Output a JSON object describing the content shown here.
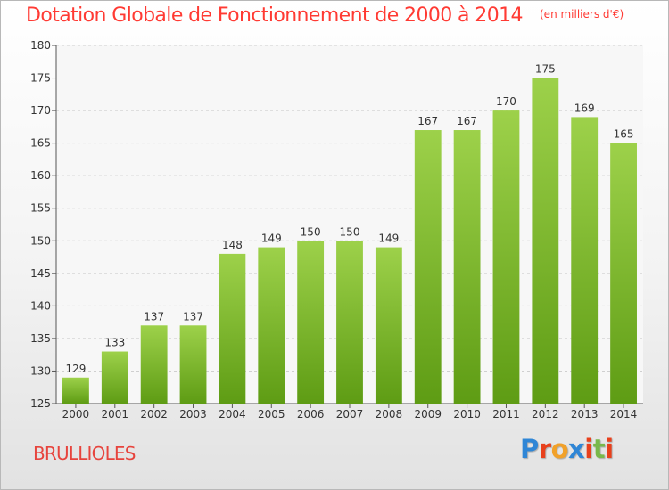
{
  "chart_data": {
    "type": "bar",
    "title": "Dotation Globale de Fonctionnement de 2000 à 2014",
    "subtitle": "(en milliers d'€)",
    "categories": [
      "2000",
      "2001",
      "2002",
      "2003",
      "2004",
      "2005",
      "2006",
      "2007",
      "2008",
      "2009",
      "2010",
      "2011",
      "2012",
      "2013",
      "2014"
    ],
    "values": [
      129,
      133,
      137,
      137,
      148,
      149,
      150,
      150,
      149,
      167,
      167,
      170,
      175,
      169,
      165
    ],
    "ylim": [
      125,
      180
    ],
    "yticks": [
      125,
      130,
      135,
      140,
      145,
      150,
      155,
      160,
      165,
      170,
      175,
      180
    ],
    "grid": true,
    "bar_color": "#7ab829",
    "xlabel": "",
    "ylabel": ""
  },
  "commune": "BRULLIOLES",
  "brand": [
    "P",
    "r",
    "o",
    "x",
    "i",
    "t",
    "i"
  ]
}
